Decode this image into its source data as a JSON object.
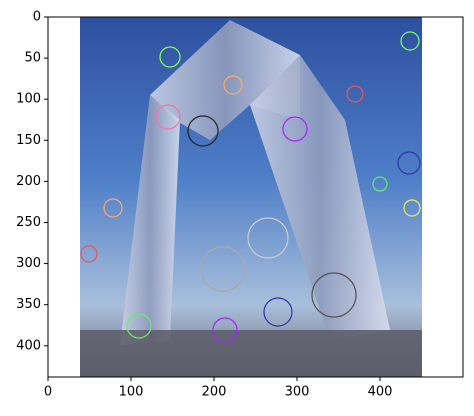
{
  "chart_data": {
    "type": "image",
    "xlim": [
      0,
      500
    ],
    "xticks": [
      0,
      100,
      200,
      300,
      400
    ],
    "ylim": [
      438,
      0
    ],
    "yticks": [
      0,
      50,
      100,
      150,
      200,
      250,
      300,
      350,
      400
    ]
  }
}
